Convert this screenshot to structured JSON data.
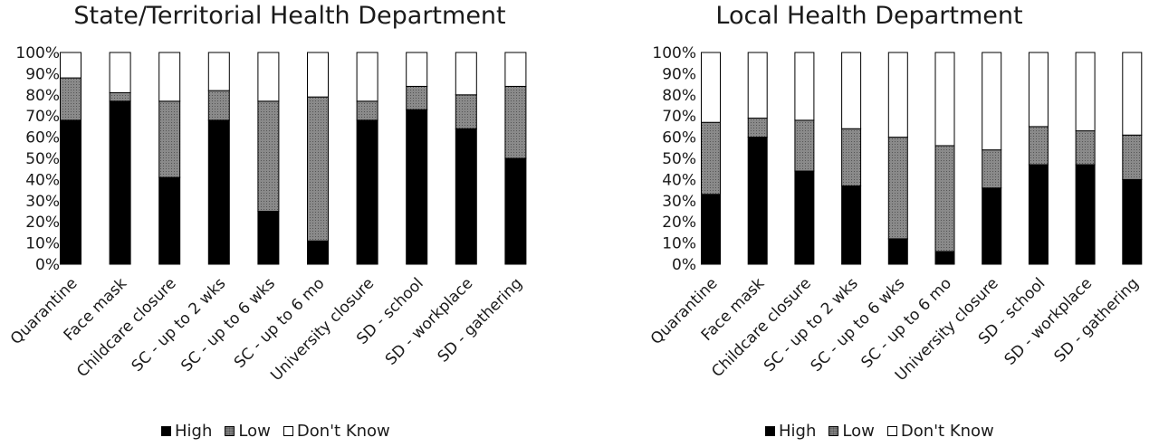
{
  "legend": {
    "high": "High",
    "low": "Low",
    "dont_know": "Don't Know"
  },
  "colors": {
    "high": "#000000",
    "low": "#808080",
    "dont_know": "#ffffff"
  },
  "chart_data": [
    {
      "type": "bar",
      "stacked": true,
      "title": "State/Territorial Health Department",
      "categories": [
        "Quarantine",
        "Face mask",
        "Childcare closure",
        "SC - up to 2 wks",
        "SC - up to 6 wks",
        "SC - up to 6 mo",
        "University closure",
        "SD - school",
        "SD - workplace",
        "SD - gathering"
      ],
      "ytick_labels": [
        "0%",
        "10%",
        "20%",
        "30%",
        "40%",
        "50%",
        "60%",
        "70%",
        "80%",
        "90%",
        "100%"
      ],
      "ylim": [
        0,
        100
      ],
      "legend_position": "bottom",
      "series": [
        {
          "name": "High",
          "values": [
            68,
            77,
            41,
            68,
            25,
            11,
            68,
            73,
            64,
            50
          ]
        },
        {
          "name": "Low",
          "values": [
            20,
            4,
            36,
            14,
            52,
            68,
            9,
            11,
            16,
            34
          ]
        },
        {
          "name": "Don't Know",
          "values": [
            12,
            19,
            23,
            18,
            23,
            21,
            23,
            16,
            20,
            16
          ]
        }
      ]
    },
    {
      "type": "bar",
      "stacked": true,
      "title": "Local Health Department",
      "categories": [
        "Quarantine",
        "Face mask",
        "Childcare closure",
        "SC - up to 2 wks",
        "SC - up to 6 wks",
        "SC - up to 6 mo",
        "University closure",
        "SD - school",
        "SD - workplace",
        "SD - gathering"
      ],
      "ytick_labels": [
        "0%",
        "10%",
        "20%",
        "30%",
        "40%",
        "50%",
        "60%",
        "70%",
        "80%",
        "90%",
        "100%"
      ],
      "ylim": [
        0,
        100
      ],
      "legend_position": "bottom",
      "series": [
        {
          "name": "High",
          "values": [
            33,
            60,
            44,
            37,
            12,
            6,
            36,
            47,
            47,
            40
          ]
        },
        {
          "name": "Low",
          "values": [
            34,
            9,
            24,
            27,
            48,
            50,
            18,
            18,
            16,
            21
          ]
        },
        {
          "name": "Don't Know",
          "values": [
            33,
            31,
            32,
            36,
            40,
            44,
            46,
            35,
            37,
            39
          ]
        }
      ]
    }
  ]
}
